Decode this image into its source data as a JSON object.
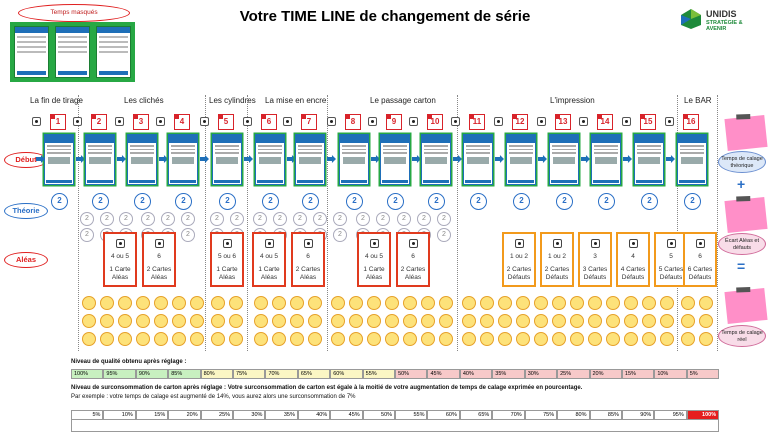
{
  "title": "Votre TIME LINE de changement de série",
  "masked_label": "Temps masqués",
  "logo": {
    "name": "UNIDIS",
    "tagline": "STRATÉGIE & AVENIR"
  },
  "phases": [
    {
      "label": "La fin de tirage"
    },
    {
      "label": "Les clichés"
    },
    {
      "label": "Les cylindres"
    },
    {
      "label": "La mise en encre"
    },
    {
      "label": "Le passage carton"
    },
    {
      "label": "L'impression"
    },
    {
      "label": "Le BAR"
    }
  ],
  "rows": {
    "debut": "Début",
    "theorie": "Théorie",
    "aleas": "Aléas"
  },
  "steps": [
    "1",
    "2",
    "3",
    "4",
    "5",
    "6",
    "7",
    "8",
    "9",
    "10",
    "11",
    "12",
    "13",
    "14",
    "15",
    "16"
  ],
  "theory_values": [
    "2",
    "2",
    "2",
    "2",
    "2",
    "2",
    "2",
    "2",
    "2",
    "2",
    "2",
    "2",
    "2",
    "2",
    "2",
    "2"
  ],
  "aleas": [
    {
      "value": "4 ou 5",
      "cards": "1 Carte Aléas",
      "color": "red"
    },
    {
      "value": "6",
      "cards": "2 Cartes Aléas",
      "color": "red"
    },
    {
      "value": "5 ou 6",
      "cards": "1 Carte Aléas",
      "color": "red"
    },
    {
      "value": "4 ou 5",
      "cards": "1 Carte Aléas",
      "color": "red"
    },
    {
      "value": "6",
      "cards": "2 Cartes Aléas",
      "color": "red"
    },
    {
      "value": "4 ou 5",
      "cards": "1 Carte Aléas",
      "color": "red"
    },
    {
      "value": "6",
      "cards": "2 Cartes Aléas",
      "color": "red"
    },
    {
      "value": "1 ou 2",
      "cards": "2 Cartes Défauts",
      "color": "orange"
    },
    {
      "value": "1 ou 2",
      "cards": "2 Cartes Défauts",
      "color": "orange"
    },
    {
      "value": "3",
      "cards": "3 Cartes Défauts",
      "color": "orange"
    },
    {
      "value": "4",
      "cards": "4 Cartes Défauts",
      "color": "orange"
    },
    {
      "value": "5",
      "cards": "5 Cartes Défauts",
      "color": "orange"
    },
    {
      "value": "6",
      "cards": "6 Cartes Défauts",
      "color": "orange"
    }
  ],
  "sidebar": {
    "theo_time": "Temps de calage théorique",
    "ecart": "Écart Aléas et défauts",
    "real_time": "Temps de calage réel",
    "plus": "+",
    "minus": "="
  },
  "quality": {
    "label": "Niveau de qualité obtenu après réglage :",
    "values": [
      "100%",
      "95%",
      "90%",
      "85%",
      "80%",
      "75%",
      "70%",
      "65%",
      "60%",
      "55%",
      "50%",
      "45%",
      "40%",
      "35%",
      "30%",
      "25%",
      "20%",
      "15%",
      "10%",
      "5%"
    ],
    "colors": [
      "#c8f0c0",
      "#c8f0c0",
      "#c8f0c0",
      "#c8f0c0",
      "#fbf6c4",
      "#fbf6c4",
      "#fbf6c4",
      "#fbf6c4",
      "#fbf6c4",
      "#fbf6c4",
      "#f7c9c9",
      "#f7c9c9",
      "#f7c9c9",
      "#f7c9c9",
      "#f7c9c9",
      "#f7c9c9",
      "#f7c9c9",
      "#f7c9c9",
      "#f7c9c9",
      "#f7c9c9"
    ]
  },
  "overuse": {
    "label": "Niveau de surconsommation de carton après réglage : Votre surconsommation de carton est égale à la moitié de votre augmentation de temps de calage exprimée en pourcentage.",
    "example": "Par exemple : votre temps de calage est augmenté de 14%, vous aurez alors une surconsommation de 7%",
    "values": [
      "5%",
      "10%",
      "15%",
      "20%",
      "25%",
      "30%",
      "35%",
      "40%",
      "45%",
      "50%",
      "55%",
      "60%",
      "65%",
      "70%",
      "75%",
      "80%",
      "85%",
      "90%",
      "95%",
      "100%"
    ]
  }
}
